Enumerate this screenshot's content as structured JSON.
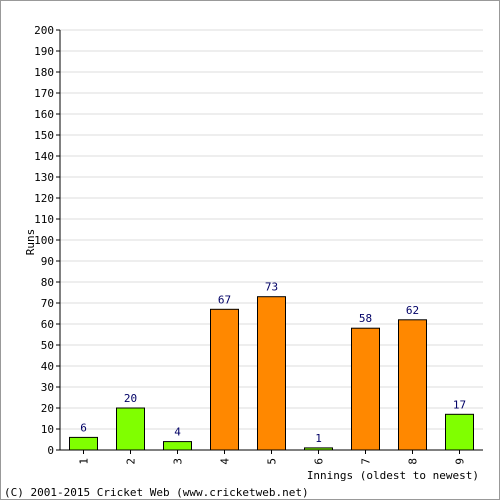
{
  "chart_data": {
    "type": "bar",
    "categories": [
      "1",
      "2",
      "3",
      "4",
      "5",
      "6",
      "7",
      "8",
      "9"
    ],
    "values": [
      6,
      20,
      4,
      67,
      73,
      1,
      58,
      62,
      17
    ],
    "bar_colors": [
      "#80ff00",
      "#80ff00",
      "#80ff00",
      "#ff8800",
      "#ff8800",
      "#80ff00",
      "#ff8800",
      "#ff8800",
      "#80ff00"
    ],
    "ylabel": "Runs",
    "xlabel": "Innings (oldest to newest)",
    "ylim": [
      0,
      200
    ],
    "ytick_step": 10,
    "grid": true
  },
  "footer": {
    "copyright": "(C) 2001-2015 Cricket Web (www.cricketweb.net)"
  }
}
